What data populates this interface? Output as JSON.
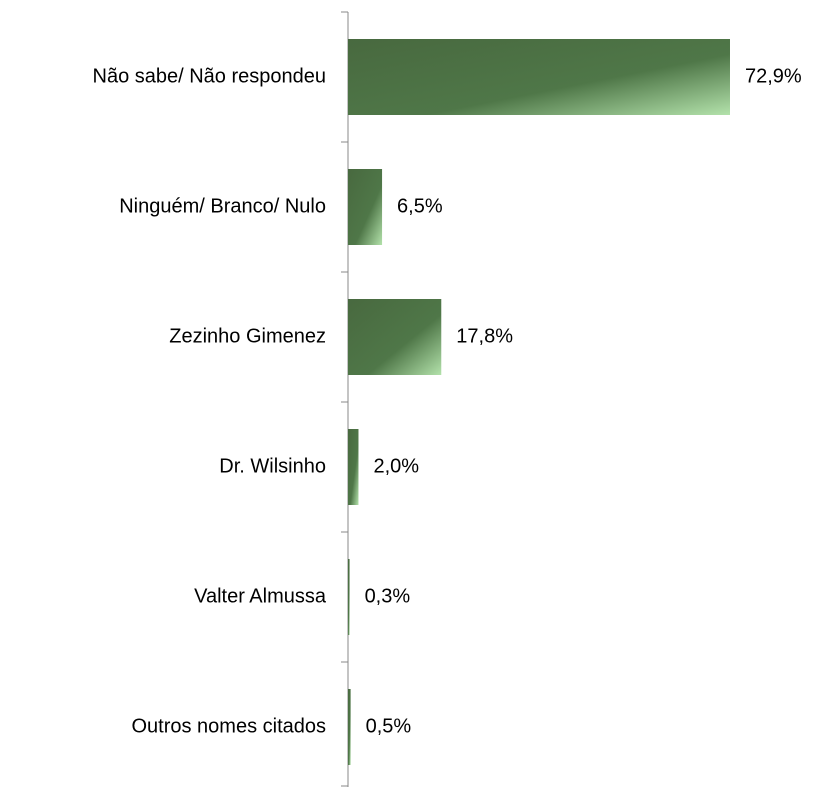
{
  "chart_data": {
    "type": "bar",
    "orientation": "horizontal",
    "categories": [
      "Não sabe/ Não respondeu",
      "Ninguém/ Branco/ Nulo",
      "Zezinho Gimenez",
      "Dr. Wilsinho",
      "Valter Almussa",
      "Outros nomes citados"
    ],
    "values": [
      72.9,
      6.5,
      17.8,
      2.0,
      0.3,
      0.5
    ],
    "value_labels": [
      "72,9%",
      "6,5%",
      "17,8%",
      "2,0%",
      "0,3%",
      "0,5%"
    ],
    "color": "#4b6e43"
  }
}
